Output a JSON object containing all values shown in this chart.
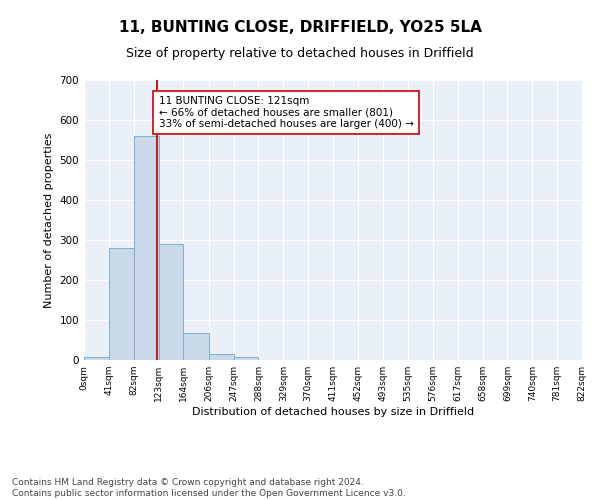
{
  "title1": "11, BUNTING CLOSE, DRIFFIELD, YO25 5LA",
  "title2": "Size of property relative to detached houses in Driffield",
  "xlabel": "Distribution of detached houses by size in Driffield",
  "ylabel": "Number of detached properties",
  "bin_edges": [
    0,
    41,
    82,
    123,
    164,
    206,
    247,
    288,
    329,
    370,
    411,
    452,
    493,
    535,
    576,
    617,
    658,
    699,
    740,
    781,
    822
  ],
  "bin_heights": [
    8,
    280,
    560,
    290,
    68,
    14,
    8,
    0,
    0,
    0,
    0,
    0,
    0,
    0,
    0,
    0,
    0,
    0,
    0,
    0
  ],
  "bar_color": "#c9d9e8",
  "bar_edge_color": "#7bafd4",
  "vline_x": 121,
  "vline_color": "#cc0000",
  "annotation_text": "11 BUNTING CLOSE: 121sqm\n← 66% of detached houses are smaller (801)\n33% of semi-detached houses are larger (400) →",
  "annotation_box_color": "white",
  "annotation_box_edge": "#cc0000",
  "annotation_fontsize": 7.5,
  "ylim": [
    0,
    700
  ],
  "yticks": [
    0,
    100,
    200,
    300,
    400,
    500,
    600,
    700
  ],
  "tick_labels": [
    "0sqm",
    "41sqm",
    "82sqm",
    "123sqm",
    "164sqm",
    "206sqm",
    "247sqm",
    "288sqm",
    "329sqm",
    "370sqm",
    "411sqm",
    "452sqm",
    "493sqm",
    "535sqm",
    "576sqm",
    "617sqm",
    "658sqm",
    "699sqm",
    "740sqm",
    "781sqm",
    "822sqm"
  ],
  "background_color": "#eaf0f8",
  "grid_color": "white",
  "footer_text": "Contains HM Land Registry data © Crown copyright and database right 2024.\nContains public sector information licensed under the Open Government Licence v3.0.",
  "footer_fontsize": 6.5,
  "title1_fontsize": 11,
  "title2_fontsize": 9,
  "xlabel_fontsize": 8,
  "ylabel_fontsize": 8
}
